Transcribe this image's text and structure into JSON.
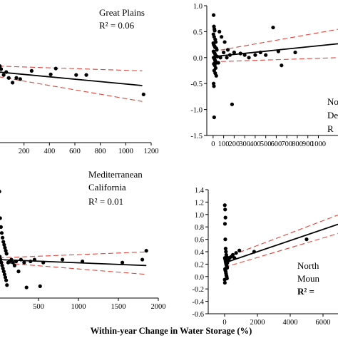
{
  "xlabel": "Within-year Change in Water Storage (%)",
  "chart_data": [
    {
      "type": "scatter",
      "panel": "top-left",
      "title": "Great Plains",
      "r2": "R² = 0.06",
      "xlim": [
        0,
        1200
      ],
      "ylim": [
        -1.3,
        1.1
      ],
      "xticks": [
        200,
        400,
        600,
        800,
        1000,
        1200
      ],
      "yticks": [],
      "points": [
        [
          10,
          0.0
        ],
        [
          20,
          -0.05
        ],
        [
          40,
          -0.15
        ],
        [
          60,
          -0.1
        ],
        [
          80,
          -0.2
        ],
        [
          110,
          -0.28
        ],
        [
          140,
          -0.2
        ],
        [
          170,
          -0.22
        ],
        [
          260,
          -0.08
        ],
        [
          410,
          -0.14
        ],
        [
          450,
          -0.04
        ],
        [
          610,
          -0.15
        ],
        [
          690,
          -0.15
        ],
        [
          1140,
          -0.48
        ]
      ],
      "fit": [
        [
          0,
          -0.1
        ],
        [
          1130,
          -0.33
        ]
      ],
      "ci_upper": [
        [
          0,
          -0.0
        ],
        [
          1130,
          -0.08
        ]
      ],
      "ci_lower": [
        [
          0,
          -0.18
        ],
        [
          1130,
          -0.6
        ]
      ]
    },
    {
      "type": "scatter",
      "panel": "top-right",
      "title": "",
      "r2": "",
      "partial_labels": [
        "No",
        "De",
        "R"
      ],
      "xlim": [
        -60,
        1200
      ],
      "ylim": [
        -1.5,
        1.0
      ],
      "xticks": [
        0,
        100,
        200,
        300,
        400,
        500,
        600,
        700,
        800,
        900,
        1000
      ],
      "xtick_labels": [
        "0",
        "100",
        "200",
        "300",
        "400",
        "500",
        "600",
        "700",
        "800",
        "900",
        "1000"
      ],
      "yticks": [
        1.0,
        0.5,
        0.0,
        -0.5,
        -1.0,
        -1.5
      ],
      "ytick_labels": [
        "1.0",
        "0.5",
        "0.0",
        "-0.5",
        "-1.0",
        "-1.5"
      ],
      "points": [
        [
          5,
          0.82
        ],
        [
          8,
          0.6
        ],
        [
          12,
          0.55
        ],
        [
          15,
          0.52
        ],
        [
          3,
          0.45
        ],
        [
          10,
          0.4
        ],
        [
          20,
          0.35
        ],
        [
          25,
          0.3
        ],
        [
          2,
          0.28
        ],
        [
          6,
          0.25
        ],
        [
          14,
          0.22
        ],
        [
          18,
          0.2
        ],
        [
          30,
          0.18
        ],
        [
          35,
          0.15
        ],
        [
          4,
          0.12
        ],
        [
          9,
          0.1
        ],
        [
          16,
          0.08
        ],
        [
          22,
          0.05
        ],
        [
          28,
          0.03
        ],
        [
          40,
          0.02
        ],
        [
          5,
          0.0
        ],
        [
          12,
          -0.02
        ],
        [
          18,
          -0.05
        ],
        [
          26,
          -0.08
        ],
        [
          32,
          -0.1
        ],
        [
          7,
          -0.12
        ],
        [
          15,
          -0.15
        ],
        [
          24,
          -0.2
        ],
        [
          10,
          -0.25
        ],
        [
          20,
          -0.3
        ],
        [
          30,
          -0.35
        ],
        [
          5,
          -0.5
        ],
        [
          8,
          -0.55
        ],
        [
          60,
          0.5
        ],
        [
          80,
          0.4
        ],
        [
          110,
          0.3
        ],
        [
          140,
          0.15
        ],
        [
          100,
          0.1
        ],
        [
          160,
          0.05
        ],
        [
          200,
          0.1
        ],
        [
          260,
          0.08
        ],
        [
          300,
          0.05
        ],
        [
          340,
          0.0
        ],
        [
          400,
          0.05
        ],
        [
          450,
          0.1
        ],
        [
          500,
          0.05
        ],
        [
          570,
          0.58
        ],
        [
          620,
          0.12
        ],
        [
          650,
          -0.15
        ],
        [
          780,
          0.1
        ],
        [
          180,
          -0.9
        ],
        [
          10,
          -1.15
        ],
        [
          50,
          -0.1
        ],
        [
          70,
          0.0
        ],
        [
          130,
          0.0
        ]
      ],
      "fit": [
        [
          0,
          0.02
        ],
        [
          1200,
          0.27
        ]
      ],
      "ci_upper": [
        [
          0,
          0.12
        ],
        [
          1200,
          0.55
        ]
      ],
      "ci_lower": [
        [
          0,
          -0.08
        ],
        [
          1200,
          0.0
        ]
      ]
    },
    {
      "type": "scatter",
      "panel": "bottom-left",
      "title": "Mediterranean California",
      "title_lines": [
        "Mediterranean",
        "California"
      ],
      "r2": "R² = 0.01",
      "xlim": [
        0,
        2000
      ],
      "ylim": [
        -0.6,
        1.4
      ],
      "xticks": [
        500,
        1000,
        1500,
        2000
      ],
      "xtick_labels": [
        "500",
        "1000",
        "1500",
        "2000"
      ],
      "yticks": [],
      "points": [
        [
          10,
          1.2
        ],
        [
          20,
          0.75
        ],
        [
          30,
          0.6
        ],
        [
          40,
          0.5
        ],
        [
          50,
          0.42
        ],
        [
          60,
          0.35
        ],
        [
          70,
          0.3
        ],
        [
          80,
          0.25
        ],
        [
          90,
          0.2
        ],
        [
          100,
          0.15
        ],
        [
          15,
          0.1
        ],
        [
          25,
          0.05
        ],
        [
          35,
          0.0
        ],
        [
          45,
          -0.05
        ],
        [
          55,
          -0.1
        ],
        [
          65,
          -0.15
        ],
        [
          75,
          -0.2
        ],
        [
          85,
          -0.25
        ],
        [
          95,
          -0.3
        ],
        [
          105,
          -0.38
        ],
        [
          120,
          0.0
        ],
        [
          140,
          0.02
        ],
        [
          160,
          0.05
        ],
        [
          180,
          0.0
        ],
        [
          200,
          -0.05
        ],
        [
          220,
          0.02
        ],
        [
          250,
          -0.15
        ],
        [
          280,
          0.05
        ],
        [
          320,
          0.0
        ],
        [
          350,
          -0.42
        ],
        [
          400,
          0.02
        ],
        [
          450,
          0.05
        ],
        [
          520,
          -0.4
        ],
        [
          560,
          0.0
        ],
        [
          800,
          0.05
        ],
        [
          1050,
          0.02
        ],
        [
          1550,
          0.0
        ],
        [
          1800,
          0.05
        ],
        [
          1850,
          0.2
        ]
      ],
      "fit": [
        [
          0,
          0.05
        ],
        [
          1850,
          -0.05
        ]
      ],
      "ci_upper": [
        [
          0,
          0.08
        ],
        [
          1850,
          0.18
        ]
      ],
      "ci_lower": [
        [
          0,
          0.0
        ],
        [
          1850,
          -0.2
        ]
      ]
    },
    {
      "type": "scatter",
      "panel": "bottom-right",
      "title": "",
      "r2": "",
      "partial_labels": [
        "North",
        "Moun",
        "R² = "
      ],
      "xlim": [
        -1000,
        7000
      ],
      "ylim": [
        -0.6,
        1.4
      ],
      "xticks": [
        0,
        2000,
        4000,
        6000
      ],
      "xtick_labels": [
        "0",
        "2000",
        "4000",
        "6000"
      ],
      "yticks": [
        1.4,
        1.2,
        1.0,
        0.8,
        0.6,
        0.4,
        0.2,
        0.0,
        -0.2,
        -0.4,
        -0.6
      ],
      "ytick_labels": [
        "1.4",
        "1.2",
        "1.0",
        "0.8",
        "0.6",
        "0.4",
        "0.2",
        "0.0",
        "-0.2",
        "-0.4",
        "-0.6"
      ],
      "points": [
        [
          10,
          1.15
        ],
        [
          30,
          1.08
        ],
        [
          50,
          0.95
        ],
        [
          20,
          0.85
        ],
        [
          40,
          0.6
        ],
        [
          60,
          0.45
        ],
        [
          80,
          0.4
        ],
        [
          100,
          0.35
        ],
        [
          120,
          0.32
        ],
        [
          15,
          0.3
        ],
        [
          35,
          0.28
        ],
        [
          55,
          0.25
        ],
        [
          75,
          0.22
        ],
        [
          95,
          0.2
        ],
        [
          115,
          0.18
        ],
        [
          135,
          0.16
        ],
        [
          155,
          0.14
        ],
        [
          25,
          0.12
        ],
        [
          45,
          0.1
        ],
        [
          65,
          0.08
        ],
        [
          85,
          0.05
        ],
        [
          105,
          0.02
        ],
        [
          125,
          0.0
        ],
        [
          145,
          -0.03
        ],
        [
          165,
          0.22
        ],
        [
          200,
          0.25
        ],
        [
          250,
          0.28
        ],
        [
          300,
          0.3
        ],
        [
          400,
          0.32
        ],
        [
          500,
          0.35
        ],
        [
          600,
          0.3
        ],
        [
          700,
          0.38
        ],
        [
          900,
          0.42
        ],
        [
          5,
          -0.05
        ],
        [
          15,
          -0.1
        ],
        [
          150,
          0.15
        ],
        [
          1800,
          0.4
        ],
        [
          5000,
          0.6
        ]
      ],
      "fit": [
        [
          0,
          0.22
        ],
        [
          7000,
          0.85
        ]
      ],
      "ci_upper": [
        [
          0,
          0.3
        ],
        [
          7000,
          1.0
        ]
      ],
      "ci_lower": [
        [
          0,
          0.15
        ],
        [
          7000,
          0.7
        ]
      ]
    }
  ]
}
